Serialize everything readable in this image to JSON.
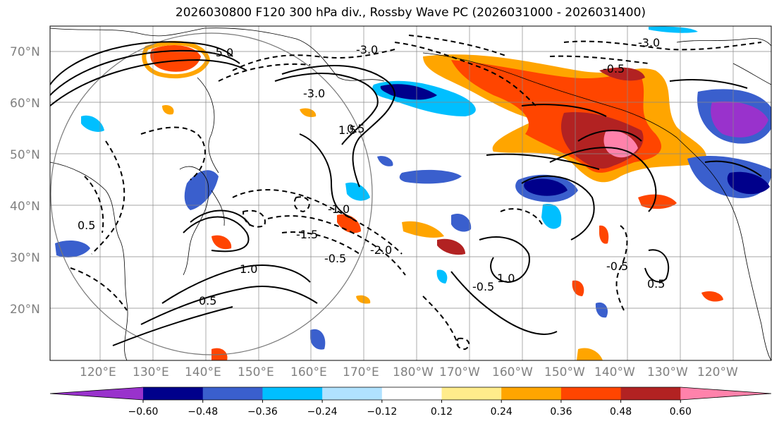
{
  "title": "2026030800 F120 300 hPa div., Rossby Wave PC (2026031000 - 2026031400)",
  "lat_labels": [
    "70°N",
    "60°N",
    "50°N",
    "40°N",
    "30°N",
    "20°N"
  ],
  "lon_labels": [
    "120°E",
    "130°E",
    "140°E",
    "150°E",
    "160°E",
    "170°E",
    "180°W",
    "170°W",
    "160°W",
    "150°W",
    "140°W",
    "130°W",
    "120°W"
  ],
  "colorbar": {
    "colors": [
      "#9932cc",
      "#00008b",
      "#3a5fcd",
      "#00bfff",
      "#b0e2ff",
      "#ffffff",
      "#ffec8b",
      "#ffa500",
      "#ff4500",
      "#b22222",
      "#ff82ab"
    ],
    "tick_labels": [
      "−0.60",
      "−0.48",
      "−0.36",
      "−0.24",
      "−0.12",
      "0.12",
      "0.24",
      "0.36",
      "0.48",
      "0.60"
    ]
  },
  "contour_labels": [
    "-5.0",
    "-3.0",
    "-3.0",
    "0.5",
    "1.5",
    "-1.0",
    "-1.5",
    "-2.0",
    "-0.5",
    "1.0",
    "-0.5",
    "0.5",
    "1.0",
    "0.5",
    "0.5",
    "-3.0",
    "-0.5",
    "-0.5"
  ]
}
